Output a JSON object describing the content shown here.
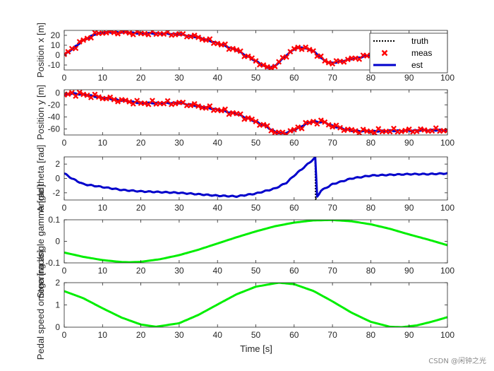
{
  "watermark": "CSDN @闲钟之光",
  "xlabel": "Time [s]",
  "xticks": [
    0,
    10,
    20,
    30,
    40,
    50,
    60,
    70,
    80,
    90,
    100
  ],
  "colors": {
    "truth": "#000000",
    "meas": "#ff0000",
    "est": "#0000cc",
    "input": "#00ee00"
  },
  "legend": {
    "entries": [
      "truth",
      "meas",
      "est"
    ],
    "placement": "top-right"
  },
  "chart_data": [
    {
      "type": "line",
      "ylabel": "Position x [m]",
      "xlim": [
        0,
        100
      ],
      "ylim": [
        -15,
        25
      ],
      "yticks": [
        -10,
        0,
        10,
        20
      ],
      "x": [
        0,
        2,
        5,
        8,
        10,
        15,
        20,
        25,
        30,
        35,
        40,
        45,
        50,
        53,
        55,
        58,
        60,
        62,
        65,
        68,
        70,
        75,
        80,
        85,
        90,
        95,
        100
      ],
      "series": [
        {
          "name": "truth",
          "style": "dotted",
          "values": [
            0,
            6,
            15,
            21,
            23,
            23,
            22,
            22,
            21,
            18,
            12,
            5,
            -6,
            -13,
            -11,
            0,
            6,
            8,
            4,
            -6,
            -8,
            -4,
            0,
            3,
            5,
            6,
            7
          ]
        },
        {
          "name": "est",
          "style": "solid",
          "values": [
            0,
            6,
            15,
            21,
            23,
            23,
            22,
            22,
            21,
            18,
            12,
            5,
            -6,
            -13,
            -11,
            0,
            6,
            8,
            4,
            -6,
            -8,
            -4,
            0,
            3,
            5,
            6,
            7
          ]
        },
        {
          "name": "meas",
          "style": "marker-x",
          "values": [
            0,
            6,
            15,
            21,
            23,
            23,
            22,
            22,
            21,
            18,
            12,
            5,
            -6,
            -13,
            -11,
            0,
            6,
            8,
            4,
            -6,
            -8,
            -4,
            0,
            3,
            5,
            6,
            7
          ]
        }
      ]
    },
    {
      "type": "line",
      "ylabel": "Position y [m]",
      "xlim": [
        0,
        100
      ],
      "ylim": [
        -70,
        5
      ],
      "yticks": [
        -60,
        -40,
        -20,
        0
      ],
      "x": [
        0,
        2,
        5,
        10,
        15,
        20,
        25,
        30,
        35,
        40,
        45,
        50,
        53,
        55,
        57,
        60,
        63,
        65,
        68,
        70,
        75,
        80,
        85,
        90,
        95,
        100
      ],
      "series": [
        {
          "name": "truth",
          "style": "dotted",
          "values": [
            -5,
            -1,
            -3,
            -8,
            -13,
            -17,
            -17,
            -17,
            -22,
            -28,
            -35,
            -48,
            -57,
            -65,
            -68,
            -62,
            -52,
            -48,
            -49,
            -55,
            -63,
            -64,
            -63,
            -63,
            -62,
            -62
          ]
        },
        {
          "name": "est",
          "style": "solid",
          "values": [
            -5,
            -1,
            -3,
            -8,
            -13,
            -17,
            -17,
            -17,
            -22,
            -28,
            -35,
            -48,
            -57,
            -65,
            -68,
            -62,
            -52,
            -48,
            -49,
            -55,
            -63,
            -64,
            -63,
            -63,
            -62,
            -62
          ]
        },
        {
          "name": "meas",
          "style": "marker-x",
          "values": [
            -5,
            -1,
            -3,
            -8,
            -13,
            -17,
            -17,
            -17,
            -22,
            -28,
            -35,
            -48,
            -57,
            -65,
            -68,
            -62,
            -52,
            -48,
            -49,
            -55,
            -63,
            -64,
            -63,
            -63,
            -62,
            -62
          ]
        }
      ]
    },
    {
      "type": "line",
      "ylabel": "Angle theta [rad]",
      "xlim": [
        0,
        100
      ],
      "ylim": [
        -3,
        3
      ],
      "yticks": [
        -2,
        0,
        2
      ],
      "x": [
        0,
        2,
        5,
        10,
        15,
        20,
        25,
        30,
        35,
        40,
        45,
        50,
        55,
        58,
        60,
        62,
        64,
        65.5,
        65.6,
        67,
        70,
        75,
        80,
        85,
        90,
        95,
        100
      ],
      "series": [
        {
          "name": "truth",
          "style": "dotted",
          "values": [
            0.7,
            0,
            -0.8,
            -1.2,
            -1.6,
            -1.8,
            -1.9,
            -2.0,
            -2.2,
            -2.4,
            -2.5,
            -2.1,
            -1.4,
            -0.6,
            0.4,
            1.3,
            2.2,
            2.9,
            -2.9,
            -1.7,
            -0.8,
            0.0,
            0.4,
            0.5,
            0.6,
            0.6,
            0.7
          ]
        },
        {
          "name": "est",
          "style": "solid",
          "values": [
            0.7,
            0,
            -0.8,
            -1.2,
            -1.6,
            -1.8,
            -1.9,
            -2.0,
            -2.2,
            -2.4,
            -2.5,
            -2.1,
            -1.4,
            -0.6,
            0.4,
            1.3,
            2.2,
            2.9,
            -2.9,
            -1.7,
            -0.8,
            0.0,
            0.4,
            0.5,
            0.6,
            0.6,
            0.7
          ]
        }
      ]
    },
    {
      "type": "line",
      "ylabel": "Steering angle gamma [rad]",
      "xlim": [
        0,
        100
      ],
      "ylim": [
        -0.1,
        0.1
      ],
      "yticks": [
        -0.1,
        0,
        0.1
      ],
      "x": [
        0,
        5,
        10,
        15,
        17,
        20,
        25,
        30,
        35,
        40,
        45,
        50,
        55,
        60,
        65,
        70,
        75,
        80,
        85,
        90,
        95,
        100
      ],
      "series": [
        {
          "name": "input",
          "style": "solid",
          "values": [
            -0.052,
            -0.072,
            -0.087,
            -0.096,
            -0.097,
            -0.095,
            -0.083,
            -0.064,
            -0.039,
            -0.01,
            0.019,
            0.046,
            0.07,
            0.087,
            0.097,
            0.099,
            0.093,
            0.079,
            0.058,
            0.032,
            0.008,
            -0.018
          ]
        }
      ]
    },
    {
      "type": "line",
      "ylabel": "Pedal speed omega [rad/s]",
      "xlim": [
        0,
        100
      ],
      "ylim": [
        0,
        2
      ],
      "yticks": [
        0,
        1,
        2
      ],
      "x": [
        0,
        5,
        10,
        15,
        20,
        24,
        30,
        35,
        40,
        45,
        50,
        56,
        60,
        65,
        70,
        75,
        80,
        85,
        88,
        92,
        96,
        100
      ],
      "series": [
        {
          "name": "input",
          "style": "solid",
          "values": [
            1.62,
            1.3,
            0.85,
            0.43,
            0.12,
            0.02,
            0.18,
            0.55,
            1.02,
            1.48,
            1.82,
            2.0,
            1.93,
            1.63,
            1.16,
            0.65,
            0.24,
            0.02,
            0.0,
            0.08,
            0.25,
            0.45
          ]
        }
      ]
    }
  ]
}
